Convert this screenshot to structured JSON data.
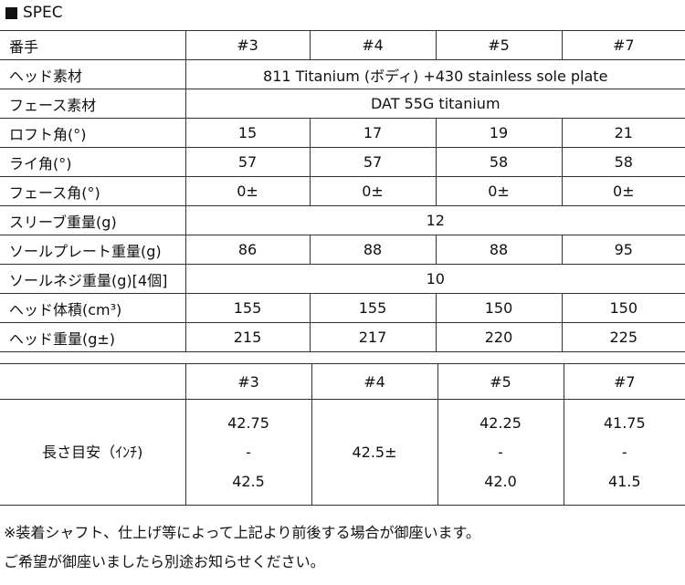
{
  "title": "SPEC",
  "spec": {
    "header": [
      "番手",
      "#3",
      "#4",
      "#5",
      "#7"
    ],
    "rows": [
      {
        "label": "ヘッド素材",
        "merged": "811 Titanium (ボディ) +430 stainless sole plate"
      },
      {
        "label": "フェース素材",
        "merged": "DAT 55G titanium"
      },
      {
        "label": "ロフト角(°)",
        "values": [
          "15",
          "17",
          "19",
          "21"
        ]
      },
      {
        "label": "ライ角(°)",
        "values": [
          "57",
          "57",
          "58",
          "58"
        ]
      },
      {
        "label": "フェース角(°)",
        "values": [
          "0±",
          "0±",
          "0±",
          "0±"
        ]
      },
      {
        "label": "スリーブ重量(g)",
        "merged": "12"
      },
      {
        "label": "ソールプレート重量(g)",
        "values": [
          "86",
          "88",
          "88",
          "95"
        ]
      },
      {
        "label": "ソールネジ重量(g)[4個]",
        "merged": "10"
      },
      {
        "label": "ヘッド体積(cm³)",
        "values": [
          "155",
          "155",
          "150",
          "150"
        ]
      },
      {
        "label": "ヘッド重量(g±)",
        "values": [
          "215",
          "217",
          "220",
          "225"
        ]
      }
    ]
  },
  "length": {
    "header": [
      "",
      "#3",
      "#4",
      "#5",
      "#7"
    ],
    "label": "長さ目安（ｲﾝﾁ)",
    "values": [
      [
        "42.75",
        "-",
        "42.5"
      ],
      [
        "42.5±"
      ],
      [
        "42.25",
        "-",
        "42.0"
      ],
      [
        "41.75",
        "-",
        "41.5"
      ]
    ]
  },
  "notes": [
    "※装着シャフト、仕上げ等によって上記より前後する場合が御座います。",
    "ご希望が御座いましたら別途お知らせください。"
  ]
}
